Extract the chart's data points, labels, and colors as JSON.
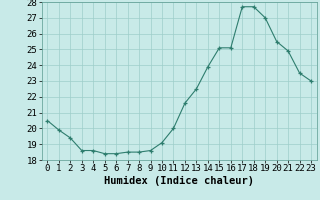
{
  "x": [
    0,
    1,
    2,
    3,
    4,
    5,
    6,
    7,
    8,
    9,
    10,
    11,
    12,
    13,
    14,
    15,
    16,
    17,
    18,
    19,
    20,
    21,
    22,
    23
  ],
  "y": [
    20.5,
    19.9,
    19.4,
    18.6,
    18.6,
    18.4,
    18.4,
    18.5,
    18.5,
    18.6,
    19.1,
    20.0,
    21.6,
    22.5,
    23.9,
    25.1,
    25.1,
    27.7,
    27.7,
    27.0,
    25.5,
    24.9,
    23.5,
    23.0
  ],
  "xlabel": "Humidex (Indice chaleur)",
  "xlim": [
    -0.5,
    23.5
  ],
  "ylim": [
    18,
    28
  ],
  "yticks": [
    18,
    19,
    20,
    21,
    22,
    23,
    24,
    25,
    26,
    27,
    28
  ],
  "xticks": [
    0,
    1,
    2,
    3,
    4,
    5,
    6,
    7,
    8,
    9,
    10,
    11,
    12,
    13,
    14,
    15,
    16,
    17,
    18,
    19,
    20,
    21,
    22,
    23
  ],
  "line_color": "#2e7d6e",
  "marker_color": "#2e7d6e",
  "bg_color": "#c8eae8",
  "grid_color": "#9ececa",
  "xlabel_fontsize": 7.5,
  "tick_fontsize": 6.5
}
